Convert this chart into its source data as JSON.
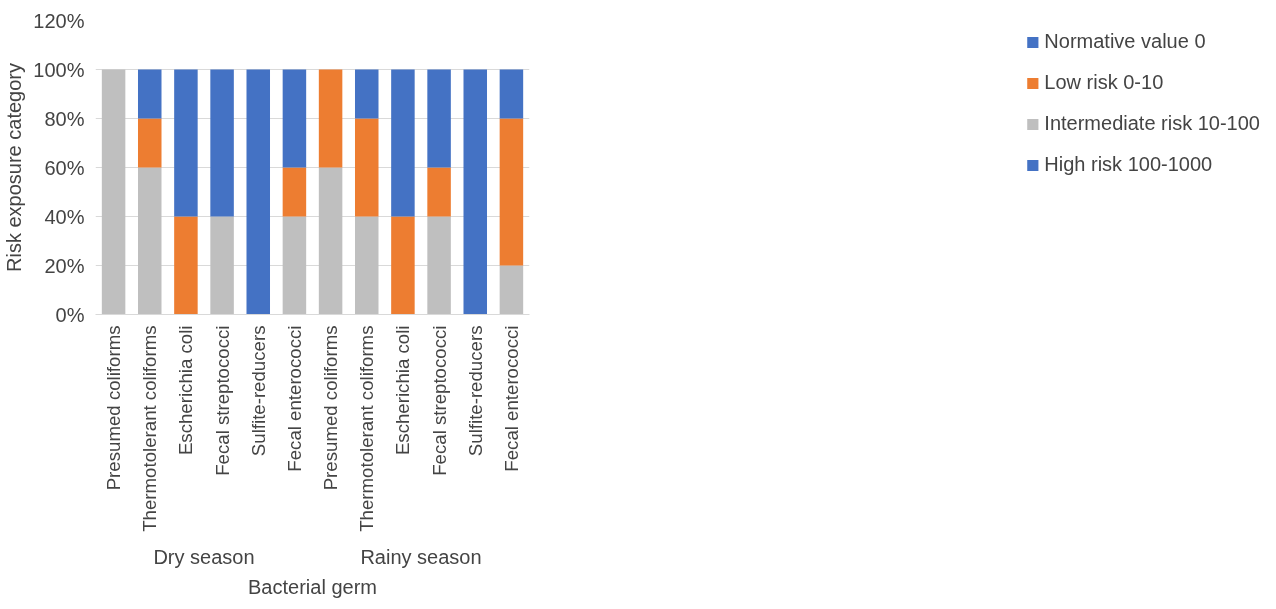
{
  "chart_data": {
    "type": "bar",
    "stacked": true,
    "xlabel": "Bacterial germ",
    "ylabel": "Risk exposure category",
    "categories": [
      "Presumed coliforms",
      "Thermotolerant coliforms",
      "Escherichia coli",
      "Fecal streptococci",
      "Sulfite-reducers",
      "Fecal enterococci",
      "Presumed coliforms",
      "Thermotolerant coliforms",
      "Escherichia coli",
      "Fecal streptococci",
      "Sulfite-reducers",
      "Fecal enterococci"
    ],
    "annotations": [
      "Dry season",
      "Rainy season"
    ],
    "series": [
      {
        "name": "High risk 100-1000",
        "color": "#4472c4",
        "values": [
          0,
          0,
          0,
          0,
          0,
          0,
          0,
          0,
          0,
          0,
          0,
          0
        ]
      },
      {
        "name": "Intermediate risk 10-100",
        "color": "#bfbfbf",
        "values": [
          100,
          60,
          0,
          40,
          0,
          40,
          60,
          40,
          0,
          40,
          0,
          20
        ]
      },
      {
        "name": "Low risk 0-10",
        "color": "#ed7d31",
        "values": [
          0,
          20,
          40,
          0,
          0,
          20,
          40,
          40,
          40,
          20,
          0,
          60
        ]
      },
      {
        "name": "Normative value 0",
        "color": "#4472c4",
        "values": [
          0,
          20,
          60,
          60,
          100,
          40,
          0,
          20,
          60,
          40,
          100,
          20
        ]
      }
    ],
    "ylim": [
      0,
      120
    ],
    "yticks": [
      {
        "value": 0,
        "label": "0%"
      },
      {
        "value": 20,
        "label": "20%"
      },
      {
        "value": 40,
        "label": "40%"
      },
      {
        "value": 60,
        "label": "60%"
      },
      {
        "value": 80,
        "label": "80%"
      },
      {
        "value": 100,
        "label": "100%"
      },
      {
        "value": 120,
        "label": "120%"
      }
    ],
    "grid": "y",
    "legend": "right"
  }
}
